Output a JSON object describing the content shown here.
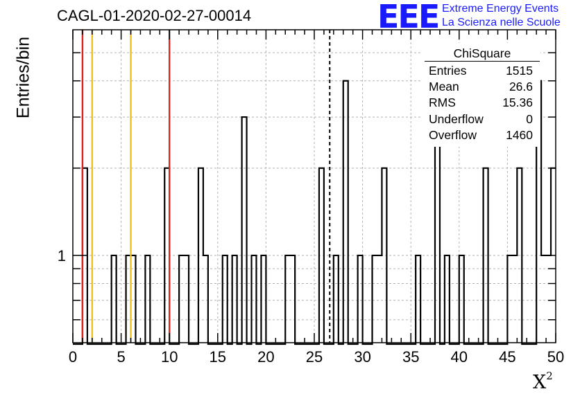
{
  "title": "CAGL-01-2020-02-27-00014",
  "logo": {
    "mark": "EEE",
    "line1": "Extreme Energy Events",
    "line2": "La Scienza nelle Scuole",
    "color": "#1a1aff"
  },
  "stats_box": {
    "title": "ChiSquare",
    "rows": [
      {
        "label": "Entries",
        "value": "1515"
      },
      {
        "label": "Mean",
        "value": "26.6"
      },
      {
        "label": "RMS",
        "value": "15.36"
      },
      {
        "label": "Underflow",
        "value": "0"
      },
      {
        "label": "Overflow",
        "value": "1460"
      }
    ]
  },
  "chart_data": {
    "type": "histogram",
    "xlabel": "X²",
    "ylabel": "Entries/bin",
    "x_range": [
      0,
      50
    ],
    "bin_width": 0.5,
    "y_scale": "log",
    "y_range": [
      0.5,
      6
    ],
    "x_ticks": [
      0,
      5,
      10,
      15,
      20,
      25,
      30,
      35,
      40,
      45,
      50
    ],
    "y_tick_labels": [
      1
    ],
    "grid": true,
    "bins": [
      {
        "x": 1.0,
        "count": 2
      },
      {
        "x": 4.0,
        "count": 1
      },
      {
        "x": 5.5,
        "count": 1
      },
      {
        "x": 6.0,
        "count": 1
      },
      {
        "x": 7.5,
        "count": 1
      },
      {
        "x": 9.5,
        "count": 2
      },
      {
        "x": 11.0,
        "count": 1
      },
      {
        "x": 11.5,
        "count": 1
      },
      {
        "x": 13.0,
        "count": 2
      },
      {
        "x": 13.5,
        "count": 1
      },
      {
        "x": 15.5,
        "count": 1
      },
      {
        "x": 16.5,
        "count": 1
      },
      {
        "x": 17.5,
        "count": 3
      },
      {
        "x": 18.5,
        "count": 1
      },
      {
        "x": 19.5,
        "count": 1
      },
      {
        "x": 22.0,
        "count": 1
      },
      {
        "x": 22.5,
        "count": 1
      },
      {
        "x": 25.5,
        "count": 2
      },
      {
        "x": 27.0,
        "count": 1
      },
      {
        "x": 28.0,
        "count": 4
      },
      {
        "x": 29.5,
        "count": 1
      },
      {
        "x": 31.0,
        "count": 1
      },
      {
        "x": 31.5,
        "count": 1
      },
      {
        "x": 32.0,
        "count": 2
      },
      {
        "x": 35.5,
        "count": 1
      },
      {
        "x": 37.5,
        "count": 3
      },
      {
        "x": 38.5,
        "count": 1
      },
      {
        "x": 40.0,
        "count": 1
      },
      {
        "x": 42.5,
        "count": 2
      },
      {
        "x": 45.0,
        "count": 1
      },
      {
        "x": 45.5,
        "count": 1
      },
      {
        "x": 46.0,
        "count": 2
      },
      {
        "x": 48.0,
        "count": 4
      },
      {
        "x": 48.5,
        "count": 1
      },
      {
        "x": 49.0,
        "count": 1
      },
      {
        "x": 49.5,
        "count": 2
      }
    ],
    "reference_lines": [
      {
        "x": 1,
        "color": "#dd2222",
        "style": "solid"
      },
      {
        "x": 2,
        "color": "#f2c012",
        "style": "solid"
      },
      {
        "x": 6,
        "color": "#f2c012",
        "style": "solid"
      },
      {
        "x": 10,
        "color": "#dd2222",
        "style": "solid"
      },
      {
        "x": 26.6,
        "color": "#000000",
        "style": "dashed"
      }
    ]
  }
}
